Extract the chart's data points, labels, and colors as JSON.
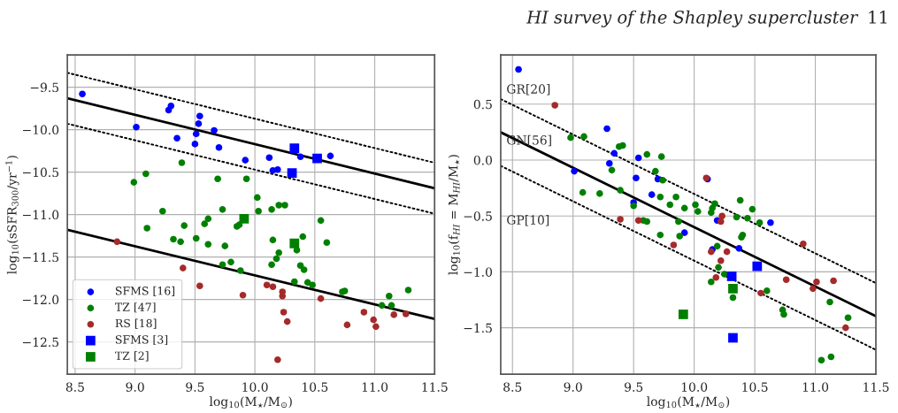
{
  "chart_data": [
    {
      "type": "scatter",
      "xlabel": "log$_{10}$(M$_{⋆}$/M$_{⊙}$)",
      "ylabel": "log$_{10}$(sSFR$_{300}$/yr$^{−1}$)",
      "xlim": [
        8.435,
        11.5
      ],
      "ylim": [
        -12.88,
        -9.12
      ],
      "xticks": [
        {
          "value": 8.5,
          "label": "8.5"
        },
        {
          "value": 9.0,
          "label": "9.0"
        },
        {
          "value": 9.5,
          "label": "9.5"
        },
        {
          "value": 10.0,
          "label": "10.0"
        },
        {
          "value": 10.5,
          "label": "10.5"
        },
        {
          "value": 11.0,
          "label": "11.0"
        },
        {
          "value": 11.5,
          "label": "11.5"
        }
      ],
      "yticks": [
        {
          "value": -9.5,
          "label": "−9.5"
        },
        {
          "value": -10.0,
          "label": "−10.0"
        },
        {
          "value": -10.5,
          "label": "−10.5"
        },
        {
          "value": -11.0,
          "label": "−11.0"
        },
        {
          "value": -11.5,
          "label": "−11.5"
        },
        {
          "value": -12.0,
          "label": "−12.0"
        },
        {
          "value": -12.5,
          "label": "−12.5"
        }
      ],
      "grid": true,
      "legend": "bottom left",
      "series": [
        {
          "name": "SFMS [16]",
          "color": "#0000ff",
          "marker": "circle",
          "x": [
            8.56,
            9.01,
            9.28,
            9.3,
            9.35,
            9.54,
            9.53,
            9.51,
            9.5,
            9.66,
            9.7,
            9.92,
            10.12,
            10.15,
            10.19,
            10.38,
            10.63
          ],
          "values": [
            -9.58,
            -9.97,
            -9.77,
            -9.72,
            -10.1,
            -9.84,
            -9.93,
            -10.05,
            -10.17,
            -10.01,
            -10.21,
            -10.36,
            -10.33,
            -10.48,
            -10.47,
            -10.32,
            -10.31
          ]
        },
        {
          "name": "TZ [47]",
          "color": "#008000",
          "marker": "circle",
          "x": [
            8.99,
            9.09,
            9.39,
            9.69,
            9.23,
            9.73,
            9.93,
            10.02,
            10.03,
            10.14,
            10.2,
            10.25,
            10.55,
            9.1,
            9.41,
            9.58,
            9.61,
            9.32,
            9.38,
            9.51,
            9.61,
            9.75,
            9.73,
            9.8,
            9.85,
            9.87,
            9.88,
            10.15,
            10.2,
            10.18,
            10.14,
            10.4,
            10.35,
            10.38,
            10.41,
            10.33,
            10.44,
            10.48,
            10.6,
            10.73,
            10.75,
            11.06,
            11.12,
            11.14,
            11.28
          ],
          "values": [
            -10.62,
            -10.52,
            -10.39,
            -10.58,
            -10.96,
            -10.94,
            -10.58,
            -10.8,
            -10.96,
            -10.94,
            -10.89,
            -10.89,
            -11.07,
            -11.16,
            -11.13,
            -11.11,
            -11.05,
            -11.29,
            -11.32,
            -11.28,
            -11.35,
            -11.37,
            -11.59,
            -11.56,
            -11.14,
            -11.12,
            -11.66,
            -11.3,
            -11.45,
            -11.52,
            -11.59,
            -11.26,
            -11.42,
            -11.6,
            -11.65,
            -11.79,
            -11.8,
            -11.83,
            -11.33,
            -11.91,
            -11.9,
            -12.07,
            -11.96,
            -12.07,
            -11.89
          ]
        },
        {
          "name": "RS [18]",
          "color": "#a52a2a",
          "marker": "circle",
          "x": [
            8.85,
            9.4,
            9.54,
            9.9,
            10.1,
            10.15,
            10.23,
            10.23,
            10.24,
            10.27,
            10.19,
            10.55,
            10.77,
            10.91,
            10.99,
            11.01,
            11.16,
            11.26
          ],
          "values": [
            -11.32,
            -11.63,
            -11.84,
            -11.95,
            -11.83,
            -11.85,
            -11.91,
            -11.96,
            -12.15,
            -12.26,
            -12.71,
            -11.99,
            -12.3,
            -12.15,
            -12.24,
            -12.32,
            -12.18,
            -12.17
          ]
        },
        {
          "name": "SFMS [3]",
          "color": "#0000ff",
          "marker": "square",
          "x": [
            10.33,
            10.52,
            10.31
          ],
          "values": [
            -10.22,
            -10.34,
            -10.51
          ]
        },
        {
          "name": "TZ [2]",
          "color": "#008000",
          "marker": "square",
          "x": [
            9.91,
            10.33
          ],
          "values": [
            -11.05,
            -11.34
          ]
        },
        {
          "type": "line",
          "color": "#000000",
          "line_style": "solid",
          "x": [
            8.435,
            11.5
          ],
          "values": [
            -9.63,
            -10.69
          ]
        },
        {
          "type": "line",
          "color": "#000000",
          "line_style": "dotted",
          "x": [
            8.435,
            11.5
          ],
          "values": [
            -9.33,
            -10.39
          ]
        },
        {
          "type": "line",
          "color": "#000000",
          "line_style": "dotted",
          "x": [
            8.435,
            11.5
          ],
          "values": [
            -9.93,
            -10.99
          ]
        },
        {
          "type": "line",
          "color": "#000000",
          "line_style": "solid",
          "x": [
            8.435,
            11.5
          ],
          "values": [
            -11.18,
            -12.23
          ]
        }
      ]
    },
    {
      "type": "scatter",
      "xlabel": "log$_{10}$(M$_{⋆}$/M$_{⊙}$)",
      "ylabel": "log$_{10}$(f$_{HI}$ = M$_{HI}$/M$_{⋆}$)",
      "xlim": [
        8.403,
        11.5
      ],
      "ylim": [
        -1.915,
        0.94
      ],
      "xticks": [
        {
          "value": 8.5,
          "label": "8.5"
        },
        {
          "value": 9.0,
          "label": "9.0"
        },
        {
          "value": 9.5,
          "label": "9.5"
        },
        {
          "value": 10.0,
          "label": "10.0"
        },
        {
          "value": 10.5,
          "label": "10.5"
        },
        {
          "value": 11.0,
          "label": "11.0"
        },
        {
          "value": 11.5,
          "label": "11.5"
        }
      ],
      "yticks": [
        {
          "value": 0.5,
          "label": "0.5"
        },
        {
          "value": 0.0,
          "label": "0.0"
        },
        {
          "value": -0.5,
          "label": "−0.5"
        },
        {
          "value": -1.0,
          "label": "−1.0"
        },
        {
          "value": -1.5,
          "label": "−1.5"
        }
      ],
      "grid": true,
      "annotations": [
        "GR[20]",
        "GN[56]",
        "GP[10]",
        "HI survey of the Shapley supercluster",
        "11"
      ],
      "series": [
        {
          "color": "#0000ff",
          "marker": "circle",
          "x": [
            8.55,
            9.01,
            9.28,
            9.3,
            9.34,
            9.54,
            9.52,
            9.5,
            9.65,
            9.7,
            10.11,
            10.19,
            10.63,
            9.92,
            10.15,
            10.37
          ],
          "values": [
            0.81,
            -0.1,
            0.28,
            -0.03,
            0.06,
            0.02,
            -0.16,
            -0.38,
            -0.31,
            -0.17,
            -0.17,
            -0.54,
            -0.56,
            -0.65,
            -0.8,
            -0.79
          ]
        },
        {
          "color": "#008000",
          "marker": "circle",
          "x": [
            8.98,
            9.09,
            9.08,
            9.22,
            9.32,
            9.38,
            9.41,
            9.39,
            9.5,
            9.61,
            9.73,
            9.68,
            9.74,
            9.72,
            9.8,
            9.58,
            9.61,
            9.85,
            9.92,
            10.01,
            10.03,
            10.15,
            10.14,
            10.17,
            10.38,
            10.48,
            10.35,
            10.44,
            10.54,
            9.87,
            9.72,
            9.88,
            10.19,
            10.4,
            10.39,
            10.2,
            10.25,
            10.14,
            10.32,
            10.6,
            10.73,
            10.74,
            11.12,
            11.27,
            11.05,
            11.13
          ],
          "values": [
            0.2,
            0.21,
            -0.29,
            -0.3,
            -0.09,
            0.12,
            0.13,
            -0.27,
            -0.41,
            0.05,
            0.03,
            -0.1,
            -0.18,
            -0.33,
            -0.4,
            -0.54,
            -0.55,
            -0.33,
            -0.43,
            -0.4,
            -0.46,
            -0.43,
            -0.47,
            -0.39,
            -0.36,
            -0.44,
            -0.51,
            -0.52,
            -0.56,
            -0.55,
            -0.67,
            -0.68,
            -0.77,
            -0.67,
            -0.69,
            -0.96,
            -1.02,
            -1.09,
            -1.23,
            -1.17,
            -1.34,
            -1.38,
            -1.27,
            -1.41,
            -1.79,
            -1.76
          ]
        },
        {
          "color": "#a52a2a",
          "marker": "circle",
          "x": [
            8.85,
            9.39,
            9.54,
            10.1,
            10.23,
            10.22,
            9.83,
            10.14,
            10.27,
            10.22,
            10.18,
            10.55,
            10.76,
            10.9,
            10.98,
            11.01,
            11.15,
            11.25
          ],
          "values": [
            0.49,
            -0.53,
            -0.54,
            -0.16,
            -0.5,
            -0.55,
            -0.76,
            -0.82,
            -0.82,
            -0.9,
            -1.05,
            -1.19,
            -1.07,
            -0.75,
            -1.15,
            -1.09,
            -1.08,
            -1.5
          ]
        },
        {
          "color": "#0000ff",
          "marker": "square",
          "x": [
            10.31,
            10.52,
            10.32
          ],
          "values": [
            -1.04,
            -0.95,
            -1.59
          ]
        },
        {
          "color": "#008000",
          "marker": "square",
          "x": [
            10.32,
            9.91
          ],
          "values": [
            -1.15,
            -1.38
          ]
        },
        {
          "type": "line",
          "color": "#000000",
          "line_style": "solid",
          "x": [
            8.403,
            11.5
          ],
          "values": [
            0.248,
            -1.397
          ]
        },
        {
          "type": "line",
          "color": "#000000",
          "line_style": "dotted",
          "x": [
            8.403,
            11.5
          ],
          "values": [
            0.545,
            -1.1
          ]
        },
        {
          "type": "line",
          "color": "#000000",
          "line_style": "dotted",
          "x": [
            8.403,
            11.5
          ],
          "values": [
            -0.052,
            -1.697
          ]
        }
      ]
    }
  ]
}
